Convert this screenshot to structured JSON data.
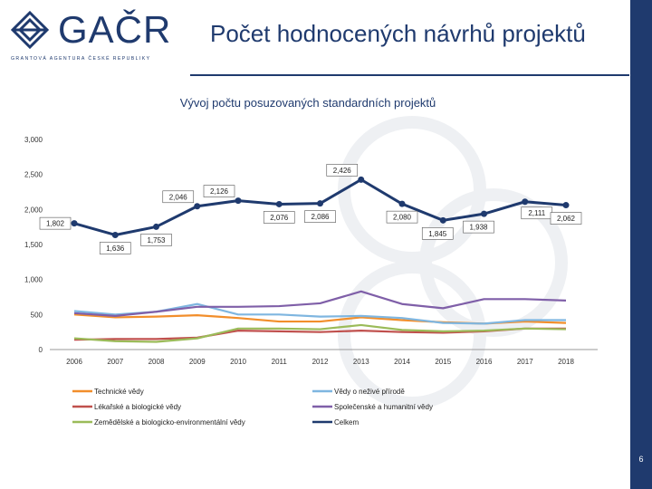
{
  "brand": {
    "name": "GAČR",
    "subtitle": "GRANTOVÁ AGENTURA ČESKÉ REPUBLIKY",
    "color": "#1f3a6e"
  },
  "header": {
    "title": "Počet hodnocených návrhů projektů"
  },
  "page_number": "6",
  "chart_data": {
    "type": "line",
    "title": "Vývoj počtu posuzovaných standardních projektů",
    "x": [
      2006,
      2007,
      2008,
      2009,
      2010,
      2011,
      2012,
      2013,
      2014,
      2015,
      2016,
      2017,
      2018
    ],
    "ylim": [
      0,
      3000
    ],
    "yticks": [
      0,
      500,
      1000,
      1500,
      2000,
      2500,
      3000
    ],
    "ytick_labels": [
      "0",
      "500",
      "1,000",
      "1,500",
      "2,000",
      "2,500",
      "3,000"
    ],
    "legend_position": "bottom",
    "series": [
      {
        "name": "Technické vědy",
        "color": "#f28e2b",
        "values": [
          500,
          460,
          470,
          490,
          450,
          400,
          400,
          460,
          420,
          390,
          370,
          400,
          380
        ]
      },
      {
        "name": "Vědy o neživé přírodě",
        "color": "#7fb6e0",
        "values": [
          550,
          500,
          540,
          650,
          500,
          500,
          470,
          480,
          450,
          380,
          370,
          420,
          420
        ]
      },
      {
        "name": "Lékařské a biologické vědy",
        "color": "#c0504d",
        "values": [
          140,
          150,
          150,
          170,
          270,
          260,
          250,
          270,
          250,
          240,
          260,
          300,
          300
        ]
      },
      {
        "name": "Společenské a humanitní vědy",
        "color": "#7f5fa8",
        "values": [
          520,
          480,
          540,
          610,
          610,
          620,
          660,
          830,
          650,
          590,
          720,
          720,
          700
        ]
      },
      {
        "name": "Zemědělské a biologicko-environmentální vědy",
        "color": "#9bbb59",
        "values": [
          160,
          120,
          110,
          160,
          300,
          300,
          290,
          350,
          280,
          260,
          270,
          300,
          290
        ]
      },
      {
        "name": "Celkem",
        "color": "#1f3a6e",
        "values": [
          1802,
          1636,
          1753,
          2046,
          2126,
          2076,
          2086,
          2426,
          2080,
          1845,
          1938,
          2111,
          2062
        ],
        "labels": [
          "1,802",
          "1,636",
          "1,753",
          "2,046",
          "2,126",
          "2,076",
          "2,086",
          "2,426",
          "2,080",
          "1,845",
          "1,938",
          "2,111",
          "2,062"
        ]
      }
    ]
  }
}
